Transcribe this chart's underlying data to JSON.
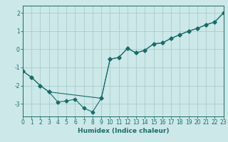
{
  "title": "",
  "xlabel": "Humidex (Indice chaleur)",
  "bg_color": "#cce8e8",
  "line_color": "#1a6b6b",
  "grid_color": "#aacccc",
  "series1_x": [
    0,
    1,
    2,
    3,
    4,
    5,
    6,
    7,
    8,
    9,
    10,
    11,
    12,
    13,
    14,
    15,
    16,
    17,
    18,
    19,
    20,
    21,
    22,
    23
  ],
  "series1_y": [
    -1.2,
    -1.55,
    -2.0,
    -2.35,
    -2.9,
    -2.85,
    -2.75,
    -3.25,
    -3.45,
    -2.7,
    -0.55,
    -0.45,
    0.05,
    -0.2,
    -0.05,
    0.3,
    0.35,
    0.6,
    0.8,
    1.0,
    1.15,
    1.35,
    1.5,
    2.0
  ],
  "series2_x": [
    0,
    1,
    2,
    3,
    9,
    10,
    11,
    12,
    13,
    14,
    15,
    16,
    17,
    18,
    19,
    20,
    21,
    22,
    23
  ],
  "series2_y": [
    -1.2,
    -1.55,
    -2.0,
    -2.35,
    -2.7,
    -0.55,
    -0.45,
    0.05,
    -0.2,
    -0.05,
    0.3,
    0.35,
    0.6,
    0.8,
    1.0,
    1.15,
    1.35,
    1.5,
    2.0
  ],
  "xlim": [
    0,
    23
  ],
  "ylim": [
    -3.7,
    2.4
  ],
  "yticks": [
    -3,
    -2,
    -1,
    0,
    1,
    2
  ],
  "xticks": [
    0,
    1,
    2,
    3,
    4,
    5,
    6,
    7,
    8,
    9,
    10,
    11,
    12,
    13,
    14,
    15,
    16,
    17,
    18,
    19,
    20,
    21,
    22,
    23
  ],
  "xtick_labels": [
    "0",
    "1",
    "2",
    "3",
    "4",
    "5",
    "6",
    "7",
    "8",
    "9",
    "10",
    "11",
    "12",
    "13",
    "14",
    "15",
    "16",
    "17",
    "18",
    "19",
    "20",
    "21",
    "22",
    "23"
  ],
  "marker": "D",
  "markersize": 2.5,
  "linewidth": 0.8,
  "xlabel_fontsize": 6.5,
  "tick_fontsize": 5.5
}
